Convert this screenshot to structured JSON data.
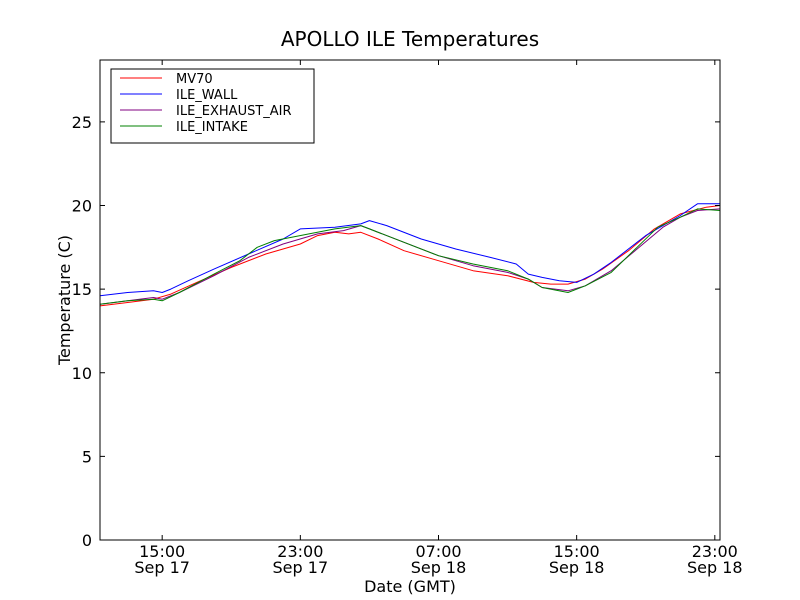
{
  "chart_data": {
    "type": "line",
    "title": "APOLLO ILE Temperatures",
    "xlabel": "Date (GMT)",
    "ylabel": "Temperature (C)",
    "ylim": [
      0,
      28.7
    ],
    "xlim": [
      11.4,
      47.3
    ],
    "x_units": "hours since Sep 17 00:00 GMT",
    "y_ticks": [
      {
        "value": 0,
        "label": "0"
      },
      {
        "value": 5,
        "label": "5"
      },
      {
        "value": 10,
        "label": "10"
      },
      {
        "value": 15,
        "label": "15"
      },
      {
        "value": 20,
        "label": "20"
      },
      {
        "value": 25,
        "label": "25"
      }
    ],
    "x_ticks": [
      {
        "value": 15,
        "time": "15:00",
        "date": "Sep 17"
      },
      {
        "value": 23,
        "time": "23:00",
        "date": "Sep 17"
      },
      {
        "value": 31,
        "time": "07:00",
        "date": "Sep 18"
      },
      {
        "value": 39,
        "time": "15:00",
        "date": "Sep 18"
      },
      {
        "value": 47,
        "time": "23:00",
        "date": "Sep 18"
      }
    ],
    "legend_location": "top-left",
    "series": [
      {
        "name": "MV70",
        "color": "#ff0000",
        "x": [
          11.4,
          13,
          14.5,
          15.5,
          17,
          19,
          21,
          23,
          24,
          25,
          25.8,
          26.5,
          27.5,
          29,
          31,
          33,
          35,
          36.5,
          37.5,
          38.5,
          39.5,
          40.5,
          42,
          43.5,
          45,
          46.5,
          47.3
        ],
        "y": [
          14.0,
          14.2,
          14.4,
          14.7,
          15.4,
          16.3,
          17.1,
          17.7,
          18.2,
          18.4,
          18.3,
          18.4,
          18.0,
          17.3,
          16.7,
          16.1,
          15.8,
          15.4,
          15.3,
          15.3,
          15.6,
          16.2,
          17.3,
          18.6,
          19.5,
          19.9,
          20.0
        ]
      },
      {
        "name": "ILE_WALL",
        "color": "#0000ff",
        "x": [
          11.4,
          13,
          14.5,
          15,
          15.5,
          16.5,
          18,
          20,
          22,
          23,
          25,
          26.5,
          27,
          28,
          30,
          32,
          34,
          35.5,
          36.2,
          37,
          38,
          39,
          40,
          41,
          43,
          45,
          46,
          47.3
        ],
        "y": [
          14.6,
          14.8,
          14.9,
          14.8,
          15.0,
          15.5,
          16.2,
          17.1,
          18.0,
          18.6,
          18.7,
          18.9,
          19.1,
          18.8,
          18.0,
          17.4,
          16.9,
          16.5,
          15.9,
          15.7,
          15.5,
          15.4,
          15.9,
          16.6,
          18.2,
          19.4,
          20.1,
          20.1
        ]
      },
      {
        "name": "ILE_EXHAUST_AIR",
        "color": "#800080",
        "x": [
          11.4,
          13,
          14.5,
          15,
          16,
          18,
          20,
          22,
          24,
          25.5,
          26.5,
          27,
          29,
          31,
          33,
          35,
          36.2,
          37,
          38.5,
          39.5,
          41,
          42.5,
          44,
          45,
          46,
          47.3
        ],
        "y": [
          14.1,
          14.3,
          14.5,
          14.4,
          14.8,
          15.8,
          16.9,
          17.7,
          18.3,
          18.5,
          18.8,
          18.6,
          17.8,
          17.0,
          16.4,
          16.0,
          15.6,
          15.1,
          14.9,
          15.2,
          16.1,
          17.4,
          18.7,
          19.3,
          19.7,
          19.8
        ]
      },
      {
        "name": "ILE_INTAKE",
        "color": "#008000",
        "x": [
          11.4,
          13,
          14.5,
          15,
          16,
          18,
          19.5,
          20.5,
          21.5,
          22.5,
          23.5,
          25,
          26.5,
          27,
          29,
          31,
          33,
          35,
          36.2,
          37,
          38.5,
          39.5,
          41,
          42.5,
          43.7,
          45,
          46,
          47.3
        ],
        "y": [
          14.1,
          14.3,
          14.4,
          14.3,
          14.8,
          15.9,
          16.7,
          17.5,
          17.9,
          18.1,
          18.3,
          18.6,
          18.8,
          18.6,
          17.8,
          17.0,
          16.5,
          16.1,
          15.6,
          15.1,
          14.8,
          15.2,
          16.0,
          17.5,
          18.7,
          19.3,
          19.8,
          19.7
        ]
      }
    ]
  }
}
